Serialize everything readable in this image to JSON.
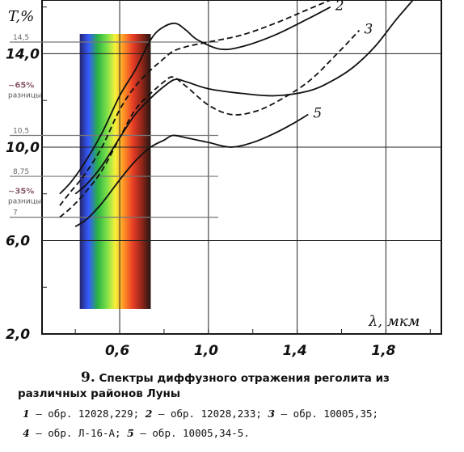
{
  "chart_data": {
    "type": "line",
    "ylabel": "T,%",
    "xlabel": "λ, мкм",
    "xlim": [
      0.25,
      2.05
    ],
    "ylim": [
      2.0,
      16.3
    ],
    "xticks": [
      "0,6",
      "1,0",
      "1,4",
      "1,8"
    ],
    "yticks": [
      "2,0",
      "6,0",
      "10,0",
      "14,0"
    ],
    "series": [
      {
        "name": "1",
        "x": [
          0.33,
          0.38,
          0.44,
          0.52,
          0.6,
          0.67,
          0.74,
          0.8,
          0.84,
          0.9,
          1.0,
          1.15,
          1.3,
          1.45,
          1.55,
          1.6
        ],
        "y": [
          7.5,
          8.1,
          8.8,
          10.0,
          11.6,
          12.6,
          13.3,
          13.8,
          14.1,
          14.3,
          14.5,
          14.8,
          15.3,
          15.9,
          16.3,
          16.5
        ]
      },
      {
        "name": "2",
        "x": [
          0.33,
          0.38,
          0.44,
          0.52,
          0.6,
          0.67,
          0.74,
          0.79,
          0.85,
          0.9,
          0.95,
          1.05,
          1.15,
          1.3,
          1.45,
          1.55
        ],
        "y": [
          8.0,
          8.5,
          9.3,
          10.6,
          12.2,
          13.3,
          14.6,
          15.1,
          15.3,
          15.0,
          14.6,
          14.2,
          14.3,
          14.8,
          15.5,
          16.0
        ]
      },
      {
        "name": "3",
        "x": [
          0.33,
          0.38,
          0.44,
          0.52,
          0.6,
          0.67,
          0.74,
          0.8,
          0.84,
          0.9,
          1.0,
          1.1,
          1.2,
          1.3,
          1.45,
          1.58,
          1.68
        ],
        "y": [
          7.0,
          7.4,
          8.0,
          9.0,
          10.4,
          11.6,
          12.3,
          12.8,
          13.0,
          12.6,
          11.8,
          11.4,
          11.5,
          11.9,
          12.8,
          14.0,
          15.0
        ]
      },
      {
        "name": "4",
        "x": [
          0.4,
          0.45,
          0.52,
          0.6,
          0.67,
          0.74,
          0.8,
          0.85,
          0.9,
          1.0,
          1.15,
          1.3,
          1.45,
          1.55,
          1.65,
          1.75,
          1.85,
          1.95
        ],
        "y": [
          8.0,
          8.4,
          9.2,
          10.4,
          11.4,
          12.1,
          12.6,
          12.9,
          12.8,
          12.5,
          12.3,
          12.2,
          12.4,
          12.8,
          13.4,
          14.3,
          15.5,
          16.6
        ]
      },
      {
        "name": "5",
        "x": [
          0.4,
          0.45,
          0.52,
          0.6,
          0.67,
          0.74,
          0.8,
          0.84,
          0.9,
          1.0,
          1.1,
          1.2,
          1.3,
          1.38,
          1.45
        ],
        "y": [
          6.6,
          6.9,
          7.6,
          8.6,
          9.4,
          10.0,
          10.3,
          10.5,
          10.4,
          10.2,
          10.0,
          10.2,
          10.6,
          11.0,
          11.4
        ]
      }
    ],
    "dashed_series": [
      "1",
      "3"
    ],
    "annotations": [
      {
        "text": "14,5",
        "y": 14.5
      },
      {
        "text": "10,5",
        "y": 10.5
      },
      {
        "text": "8,75",
        "y": 8.75
      },
      {
        "text": "7",
        "y": 7.0
      }
    ],
    "bracket_labels": [
      {
        "percent": "~65%",
        "sub": "разницы"
      },
      {
        "percent": "~35%",
        "sub": "разницы"
      }
    ],
    "spectrum_band": {
      "x_from": 0.42,
      "x_to": 0.74,
      "colors": [
        "#1a1a66",
        "#2b52ff",
        "#1fae3a",
        "#6fdc3e",
        "#f6f030",
        "#ff8a1a",
        "#e5321b",
        "#8a1a0c",
        "#1a0905"
      ]
    }
  },
  "caption": {
    "number": "9.",
    "title": "Спектры диффузного отражения реголита из различных районов Луны",
    "legend_line1": [
      {
        "num": "1",
        "text": " — обр. 12028,229; "
      },
      {
        "num": "2",
        "text": " — обр. 12028,233; "
      },
      {
        "num": "3",
        "text": " —  обр.  10005,35;"
      }
    ],
    "legend_line2": [
      {
        "num": "4",
        "text": " — обр. Л-16-А; "
      },
      {
        "num": "5",
        "text": " — обр. 10005,34-5."
      }
    ]
  }
}
